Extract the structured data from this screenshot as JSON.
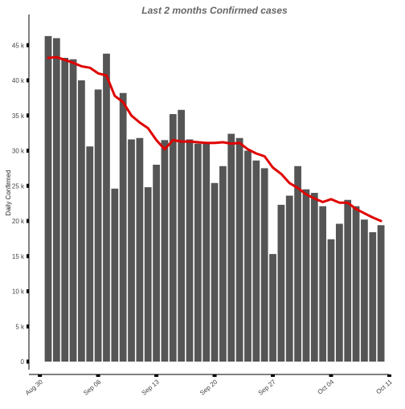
{
  "chart_data": {
    "type": "bar",
    "title": "Last 2 months Confirmed cases",
    "xlabel": "",
    "ylabel": "Daily Confirmed",
    "ylim": [
      0,
      48000
    ],
    "y_ticks": [
      0,
      5000,
      10000,
      15000,
      20000,
      25000,
      30000,
      35000,
      40000,
      45000
    ],
    "y_tick_labels": [
      "0",
      "5 k",
      "10 k",
      "15 k",
      "20 k",
      "25 k",
      "30 k",
      "35 k",
      "40 k",
      "45 k"
    ],
    "x_tick_labels": [
      "Aug 30",
      "Sep 06",
      "Sep 13",
      "Sep 20",
      "Sep 27",
      "Oct 04",
      "Oct 11"
    ],
    "grid": false,
    "colors": {
      "bars": "#555555",
      "line": "#e00000",
      "title": "#666666"
    },
    "series": [
      {
        "type": "bar",
        "x": [
          "2020-08-31",
          "2020-09-01",
          "2020-09-02",
          "2020-09-03",
          "2020-09-04",
          "2020-09-05",
          "2020-09-06",
          "2020-09-07",
          "2020-09-08",
          "2020-09-09",
          "2020-09-10",
          "2020-09-11",
          "2020-09-12",
          "2020-09-13",
          "2020-09-14",
          "2020-09-15",
          "2020-09-16",
          "2020-09-17",
          "2020-09-18",
          "2020-09-19",
          "2020-09-20",
          "2020-09-21",
          "2020-09-22",
          "2020-09-23",
          "2020-09-24",
          "2020-09-25",
          "2020-09-26",
          "2020-09-27",
          "2020-09-28",
          "2020-09-29",
          "2020-09-30",
          "2020-10-01",
          "2020-10-02",
          "2020-10-03",
          "2020-10-04",
          "2020-10-05",
          "2020-10-06",
          "2020-10-07",
          "2020-10-08",
          "2020-10-09",
          "2020-10-10",
          "2020-10-11"
        ],
        "values": [
          46300,
          46000,
          43200,
          43000,
          40000,
          30600,
          38700,
          43800,
          24600,
          38200,
          31600,
          31800,
          24800,
          28000,
          31500,
          35200,
          35800,
          31600,
          31000,
          31200,
          25400,
          27800,
          32400,
          31800,
          30000,
          28600,
          27500,
          15300,
          22300,
          23600,
          27800,
          24500,
          24000,
          22100,
          17400,
          19600,
          23000,
          22100,
          20200,
          18400,
          19400,
          null
        ]
      },
      {
        "type": "line",
        "x": [
          "2020-08-31",
          "2020-09-01",
          "2020-09-02",
          "2020-09-03",
          "2020-09-04",
          "2020-09-05",
          "2020-09-06",
          "2020-09-07",
          "2020-09-08",
          "2020-09-09",
          "2020-09-10",
          "2020-09-11",
          "2020-09-12",
          "2020-09-13",
          "2020-09-14",
          "2020-09-15",
          "2020-09-16",
          "2020-09-17",
          "2020-09-18",
          "2020-09-19",
          "2020-09-20",
          "2020-09-21",
          "2020-09-22",
          "2020-09-23",
          "2020-09-24",
          "2020-09-25",
          "2020-09-26",
          "2020-09-27",
          "2020-09-28",
          "2020-09-29",
          "2020-09-30",
          "2020-10-01",
          "2020-10-02",
          "2020-10-03",
          "2020-10-04",
          "2020-10-05",
          "2020-10-06",
          "2020-10-07",
          "2020-10-08",
          "2020-10-09",
          "2020-10-10",
          "2020-10-11"
        ],
        "values": [
          43200,
          43300,
          42900,
          42500,
          42000,
          41800,
          41000,
          40700,
          37800,
          36900,
          35000,
          34000,
          33200,
          31500,
          30200,
          31500,
          31300,
          31300,
          31200,
          31100,
          31100,
          31200,
          31000,
          31100,
          30200,
          29600,
          29200,
          27600,
          26700,
          25400,
          24700,
          23800,
          23200,
          22700,
          23100,
          22600,
          22600,
          21700,
          21100,
          20500,
          20000,
          null
        ]
      }
    ]
  }
}
